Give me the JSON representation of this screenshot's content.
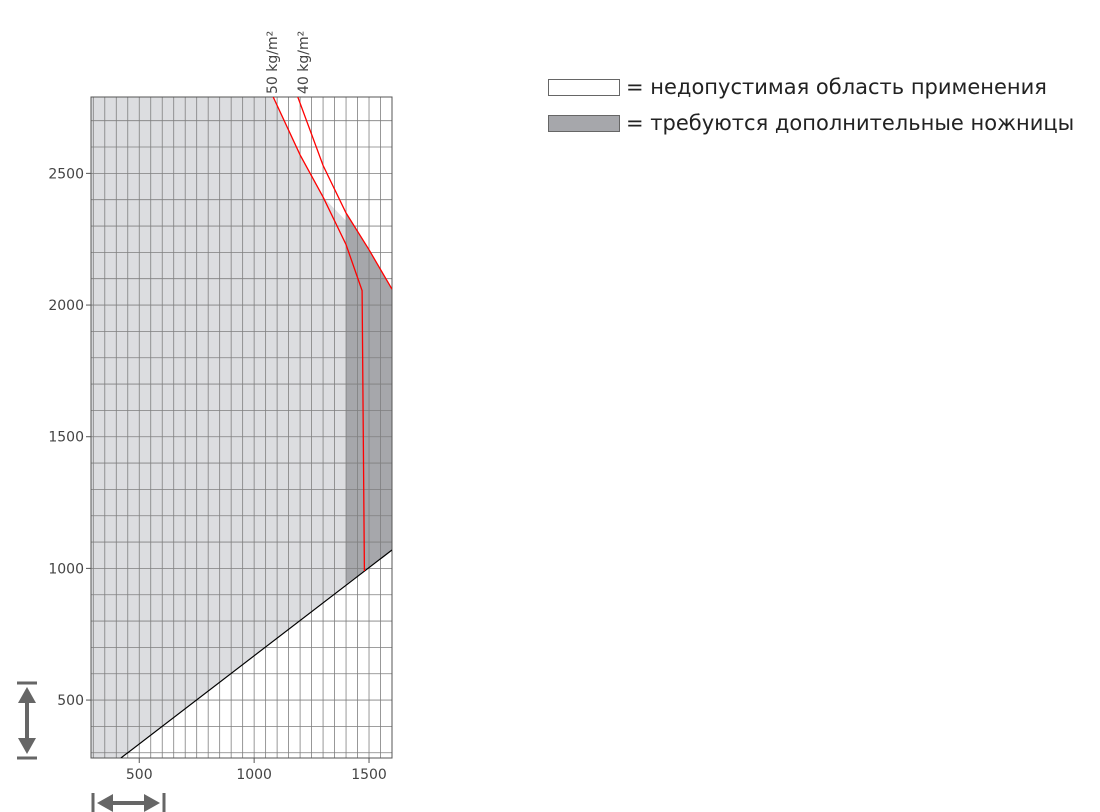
{
  "chart_data": {
    "type": "area",
    "xlim": [
      290,
      1600
    ],
    "ylim": [
      280,
      2790
    ],
    "x_ticks": [
      500,
      1000,
      1500
    ],
    "y_ticks": [
      500,
      1000,
      1500,
      2000,
      2500
    ],
    "grid": true,
    "colors": {
      "allowed": "#dcdde0",
      "extra_scissors": "#a6a7ab",
      "not_allowed": "#ffffff",
      "limit_line": "#ff0000",
      "min_line": "#000000",
      "grid": "#7f7f7f",
      "arrow": "#666666"
    },
    "series": [
      {
        "name": "50 kg/m²",
        "x": [
          1083,
          1200,
          1300,
          1400,
          1470,
          1480
        ],
        "y": [
          2790,
          2570,
          2410,
          2230,
          2055,
          990
        ]
      },
      {
        "name": "40 kg/m²",
        "x": [
          1190,
          1300,
          1400,
          1500,
          1600
        ],
        "y": [
          2790,
          2530,
          2350,
          2210,
          2060
        ]
      }
    ],
    "min_line": {
      "x": [
        420,
        1600
      ],
      "y": [
        280,
        1070
      ]
    },
    "regions": {
      "allowed": [
        [
          290,
          280
        ],
        [
          420,
          280
        ],
        [
          1400,
          940
        ],
        [
          1400,
          2320
        ],
        [
          1300,
          2410
        ],
        [
          1200,
          2570
        ],
        [
          1083,
          2790
        ],
        [
          290,
          2790
        ]
      ],
      "extra_scissors": [
        [
          1400,
          940
        ],
        [
          1600,
          1070
        ],
        [
          1600,
          2060
        ],
        [
          1500,
          2210
        ],
        [
          1400,
          2350
        ]
      ]
    },
    "axis_arrows": {
      "horizontal": "left-right",
      "vertical": "up-down"
    }
  },
  "legend": {
    "items": [
      {
        "swatch": "#ffffff",
        "label": "= недопустимая область применения"
      },
      {
        "swatch": "#a6a7ab",
        "label": "= требуются дополнительные ножницы"
      }
    ]
  }
}
